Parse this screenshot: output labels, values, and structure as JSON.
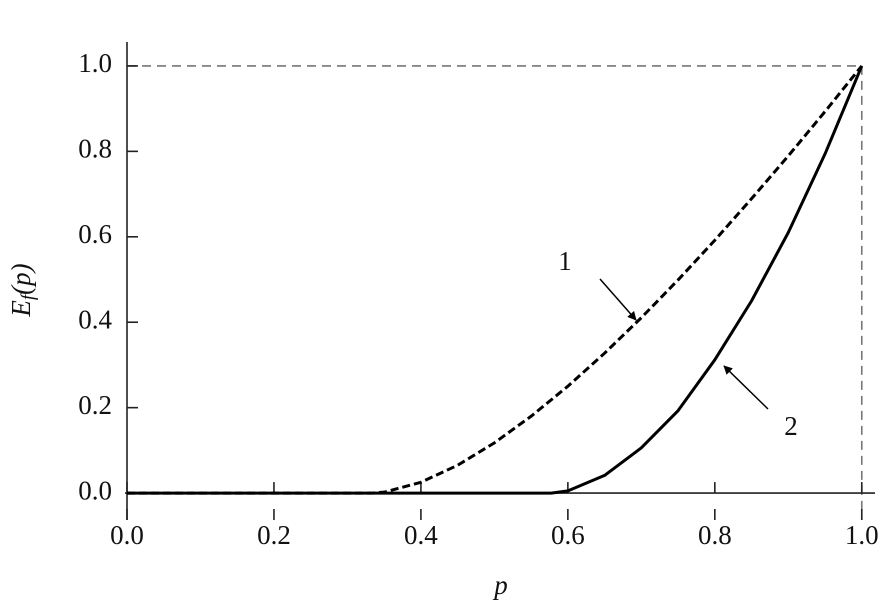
{
  "chart_data": {
    "type": "line",
    "xlabel": "p",
    "ylabel": {
      "main": "E",
      "sub": "f",
      "rest": "(p)"
    },
    "series": [
      {
        "name": "1",
        "color": "#000000",
        "dashed": true,
        "x": [
          0,
          0.1,
          0.2,
          0.3,
          0.3333,
          0.35,
          0.4,
          0.45,
          0.5,
          0.55,
          0.6,
          0.65,
          0.7,
          0.75,
          0.8,
          0.85,
          0.9,
          0.95,
          1.0
        ],
        "values": [
          0,
          0,
          0,
          0,
          0,
          0.0022,
          0.0253,
          0.0652,
          0.1176,
          0.1799,
          0.2502,
          0.3275,
          0.4106,
          0.499,
          0.5919,
          0.6892,
          0.7894,
          0.8932,
          1.0
        ]
      },
      {
        "name": "2",
        "color": "#000000",
        "dashed": false,
        "x": [
          0,
          0.1,
          0.2,
          0.3,
          0.4,
          0.5,
          0.5774,
          0.6,
          0.65,
          0.7,
          0.75,
          0.8,
          0.85,
          0.9,
          0.95,
          1.0
        ],
        "values": [
          0,
          0,
          0,
          0,
          0,
          0,
          0,
          0.0051,
          0.0414,
          0.106,
          0.193,
          0.312,
          0.45,
          0.61,
          0.794,
          1.0
        ]
      }
    ],
    "guides": {
      "x": 1.0,
      "y": 1.0
    },
    "xlim": [
      0,
      1.018
    ],
    "ylim": [
      -0.063,
      1.056
    ],
    "xticks": [
      {
        "value": 0,
        "label": "0.0"
      },
      {
        "value": 0.2,
        "label": "0.2"
      },
      {
        "value": 0.4,
        "label": "0.4"
      },
      {
        "value": 0.6,
        "label": "0.6"
      },
      {
        "value": 0.8,
        "label": "0.8"
      },
      {
        "value": 1.0,
        "label": "1.0"
      }
    ],
    "yticks": [
      {
        "value": 0,
        "label": "0.0"
      },
      {
        "value": 0.2,
        "label": "0.2"
      },
      {
        "value": 0.4,
        "label": "0.4"
      },
      {
        "value": 0.6,
        "label": "0.6"
      },
      {
        "value": 0.8,
        "label": "0.8"
      },
      {
        "value": 1.0,
        "label": "1.0"
      }
    ],
    "grid": false
  }
}
